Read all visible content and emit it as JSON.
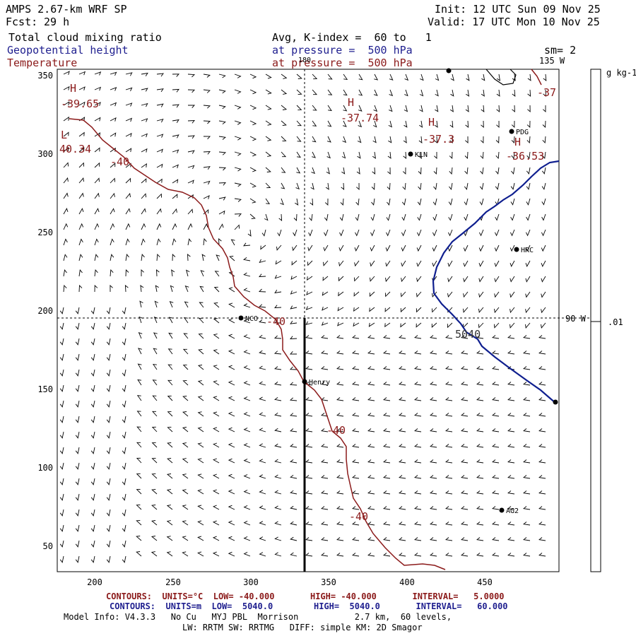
{
  "header": {
    "model": "AMPS 2.67-km WRF SP",
    "fcst_label": "Fcst:",
    "fcst_hours": "29 h",
    "init": "Init: 12 UTC Sun 09 Nov 25",
    "valid": "Valid: 17 UTC Mon 10 Nov 25",
    "field1": "Total cloud mixing ratio",
    "field2": "Geopotential height",
    "field3": "Temperature",
    "avg": "Avg, K-index =  60 to   1",
    "pressure1": "at pressure =  500 hPa",
    "pressure2": "at pressure =  500 hPa",
    "sm": "sm= 2"
  },
  "map": {
    "x_ticks": [
      "200",
      "250",
      "300",
      "350",
      "400",
      "450"
    ],
    "y_ticks": [
      "350",
      "300",
      "250",
      "200",
      "150",
      "100",
      "50"
    ],
    "meridian_top": "180",
    "meridian_right_top": "135 W",
    "meridian_right": "90 W",
    "stations": [
      {
        "name": "KLN"
      },
      {
        "name": "PDG"
      },
      {
        "name": "HRC"
      },
      {
        "name": "NCO"
      },
      {
        "name": "Henry"
      },
      {
        "name": "AG2"
      }
    ],
    "temp_labels": [
      "H",
      "-39.65",
      "L",
      "40.34",
      "-40",
      "H",
      "-37.74",
      "H",
      "-37.3",
      "H",
      "-36.53",
      "-37",
      "-40",
      "-40",
      "-40"
    ],
    "height_labels": [
      "5040"
    ],
    "colorbar_unit": "g kg-1",
    "colorbar_value": ".01"
  },
  "footer": {
    "contours_temp": "CONTOURS:  UNITS=°C  LOW= -40.000       HIGH= -40.000       INTERVAL=   5.0000",
    "contours_hgt": "CONTOURS:  UNITS=m  LOW=  5040.0        HIGH=  5040.0       INTERVAL=   60.000",
    "model_info": "Model Info: V4.3.3   No Cu   MYJ PBL  Morrison           2.7 km,  60 levels,",
    "model_info2": "LW: RRTM SW: RRTMG   DIFF: simple KM: 2D Smagor"
  },
  "colors": {
    "temperature": "#8b1a1a",
    "height": "#1f1f8f"
  }
}
